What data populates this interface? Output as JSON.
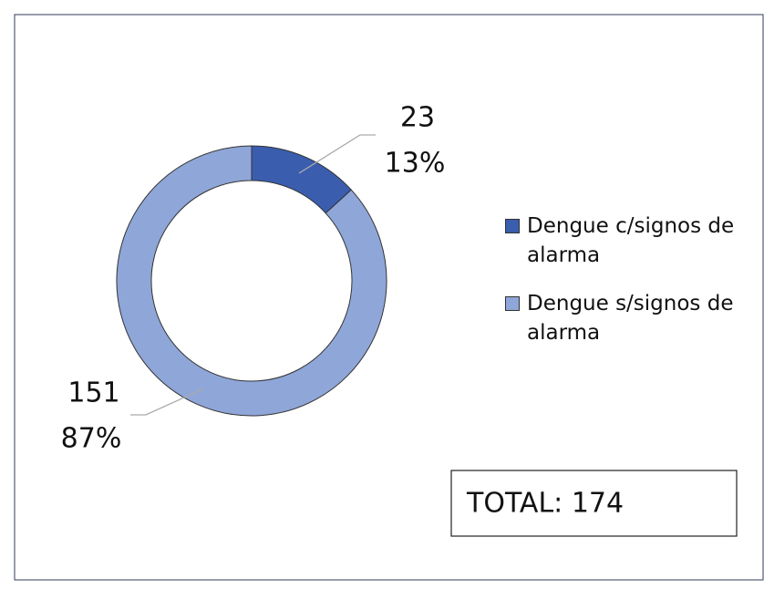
{
  "chart_data": {
    "type": "donut",
    "categories": [
      "Dengue c/signos de alarma",
      "Dengue s/signos de alarma"
    ],
    "values": [
      23,
      151
    ],
    "percents": [
      13,
      87
    ],
    "percent_labels": [
      "13%",
      "87%"
    ],
    "colors": [
      "#3a5dae",
      "#8fa6d8"
    ],
    "annotation": "TOTAL: 174",
    "legend": "right"
  }
}
